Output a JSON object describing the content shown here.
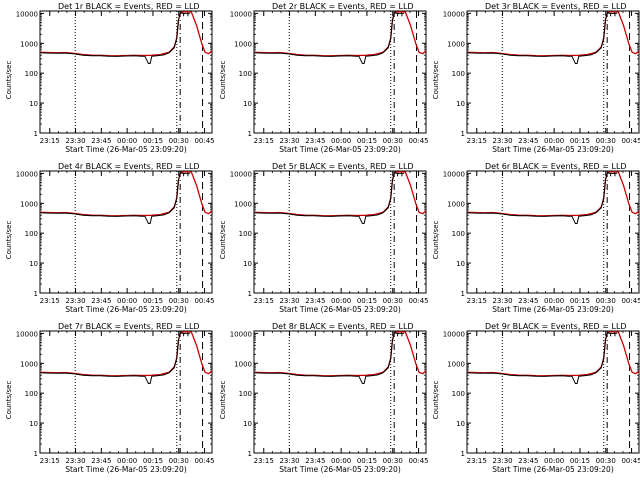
{
  "chart_data": [
    {
      "type": "line",
      "title": "Det 1r BLACK = Events, RED = LLD",
      "xlabel": "Start Time (26-Mar-05 23:09:20)",
      "ylabel": "Counts/sec"
    },
    {
      "type": "line",
      "title": "Det 2r BLACK = Events, RED = LLD",
      "xlabel": "Start Time (26-Mar-05 23:09:20)",
      "ylabel": "Counts/sec"
    },
    {
      "type": "line",
      "title": "Det 3r BLACK = Events, RED = LLD",
      "xlabel": "Start Time (26-Mar-05 23:09:20)",
      "ylabel": "Counts/sec"
    },
    {
      "type": "line",
      "title": "Det 4r BLACK = Events, RED = LLD",
      "xlabel": "Start Time (26-Mar-05 23:09:20)",
      "ylabel": "Counts/sec"
    },
    {
      "type": "line",
      "title": "Det 5r BLACK = Events, RED = LLD",
      "xlabel": "Start Time (26-Mar-05 23:09:20)",
      "ylabel": "Counts/sec"
    },
    {
      "type": "line",
      "title": "Det 6r BLACK = Events, RED = LLD",
      "xlabel": "Start Time (26-Mar-05 23:09:20)",
      "ylabel": "Counts/sec"
    },
    {
      "type": "line",
      "title": "Det 7r BLACK = Events, RED = LLD",
      "xlabel": "Start Time (26-Mar-05 23:09:20)",
      "ylabel": "Counts/sec"
    },
    {
      "type": "line",
      "title": "Det 8r BLACK = Events, RED = LLD",
      "xlabel": "Start Time (26-Mar-05 23:09:20)",
      "ylabel": "Counts/sec"
    },
    {
      "type": "line",
      "title": "Det 9r BLACK = Events, RED = LLD",
      "xlabel": "Start Time (26-Mar-05 23:09:20)",
      "ylabel": "Counts/sec"
    }
  ],
  "shared": {
    "y_scale": "log",
    "ylim": [
      1,
      12000
    ],
    "xlim_minutes_after_start": [
      0,
      100
    ],
    "x_ticks": [
      {
        "label": "23:15",
        "minute": 5.67
      },
      {
        "label": "23:30",
        "minute": 20.67
      },
      {
        "label": "23:45",
        "minute": 35.67
      },
      {
        "label": "00:00",
        "minute": 50.67
      },
      {
        "label": "00:15",
        "minute": 65.67
      },
      {
        "label": "00:30",
        "minute": 80.67
      },
      {
        "label": "00:45",
        "minute": 95.67
      }
    ],
    "y_ticks": [
      {
        "label": "1",
        "value": 1
      },
      {
        "label": "10",
        "value": 10
      },
      {
        "label": "100",
        "value": 100
      },
      {
        "label": "1000",
        "value": 1000
      },
      {
        "label": "10000",
        "value": 10000
      }
    ],
    "vertical_markers": [
      {
        "style": "dotted",
        "minute": 20.5
      },
      {
        "style": "dotted",
        "minute": 79.5
      },
      {
        "style": "dashdot",
        "minute": 81.5
      },
      {
        "style": "dashed",
        "minute": 94.5
      }
    ],
    "events_series": {
      "name": "Events",
      "color": "#000000",
      "x": [
        0,
        5,
        10,
        15,
        20,
        25,
        30,
        35,
        40,
        45,
        50,
        55,
        59,
        61,
        63,
        64,
        65,
        68,
        72,
        75,
        78,
        79.5,
        80.5,
        81.5,
        82.5
      ],
      "y": [
        480,
        470,
        465,
        470,
        440,
        400,
        385,
        380,
        370,
        365,
        375,
        380,
        370,
        370,
        210,
        210,
        370,
        385,
        410,
        480,
        700,
        1400,
        6000,
        10000,
        11000
      ]
    },
    "lld_series": {
      "name": "LLD",
      "color": "#cc0000",
      "x": [
        0,
        5,
        10,
        15,
        20,
        25,
        30,
        35,
        40,
        45,
        50,
        55,
        60,
        65,
        70,
        75,
        78,
        79.5,
        80.5,
        81.5,
        82.5,
        85,
        88,
        91,
        94,
        96,
        98,
        100
      ],
      "y": [
        500,
        490,
        480,
        490,
        460,
        420,
        400,
        395,
        385,
        380,
        390,
        395,
        390,
        395,
        420,
        500,
        750,
        1500,
        6000,
        10000,
        11000,
        11500,
        11000,
        4000,
        1000,
        500,
        450,
        550
      ]
    },
    "error_bar": {
      "x": [
        83.5,
        86
      ],
      "y": 9000,
      "value_range": [
        8000,
        10000
      ]
    }
  }
}
